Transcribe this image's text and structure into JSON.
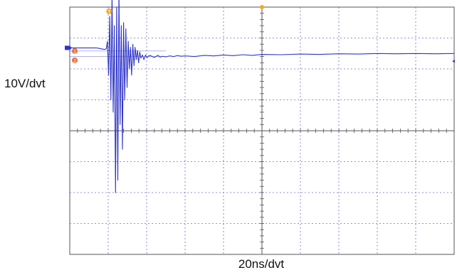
{
  "chart_data": {
    "type": "line",
    "title": "",
    "xlabel": "20ns/dvt",
    "ylabel": "10V/dvt",
    "x_divisions": 10,
    "y_divisions": 8,
    "xlim": [
      0,
      200
    ],
    "ylim": [
      -40,
      40
    ],
    "x_unit": "ns",
    "y_unit": "V",
    "grid": true,
    "series": [
      {
        "color": "#2f35c8",
        "x": [
          0,
          14,
          18,
          19.0,
          19.6,
          20.2,
          20.8,
          21.4,
          22.0,
          22.6,
          23.2,
          23.8,
          24.4,
          25.0,
          25.6,
          26.2,
          26.8,
          27.4,
          28.0,
          28.6,
          29.2,
          29.8,
          30.4,
          31.0,
          31.6,
          32.2,
          32.8,
          33.4,
          34.0,
          34.6,
          35.2,
          35.8,
          36.4,
          37.0,
          37.8,
          38.6,
          39.4,
          40.2,
          41.0,
          42,
          43,
          44,
          45,
          46,
          47,
          48,
          50,
          52,
          54,
          56,
          58,
          60,
          65,
          70,
          75,
          80,
          85,
          90,
          95,
          100,
          110,
          120,
          130,
          140,
          150,
          160,
          170,
          180,
          190,
          200
        ],
        "y": [
          26.8,
          26.8,
          26.3,
          26.5,
          29,
          18,
          37,
          10,
          44,
          6,
          34,
          -20,
          40,
          -16,
          46,
          2,
          34,
          -6,
          35,
          10,
          33,
          14,
          29,
          20,
          27,
          18,
          28,
          21,
          27,
          23,
          26,
          22,
          25.5,
          23.5,
          24.5,
          23,
          24.5,
          23.6,
          24.2,
          24.3,
          24.0,
          23.7,
          24.1,
          24.4,
          23.8,
          24.1,
          23.9,
          24.2,
          24.0,
          24.3,
          24.1,
          24.2,
          24.0,
          24.4,
          24.2,
          24.5,
          24.3,
          24.6,
          24.4,
          24.7,
          24.6,
          24.8,
          24.7,
          24.9,
          24.8,
          25.0,
          24.9,
          25.0,
          24.9,
          25.0
        ]
      }
    ]
  },
  "labels": {
    "ylabel": "10V/dvt",
    "xlabel": "20ns/dvt",
    "trigger_marker": "T",
    "channel_marker_1": "1",
    "channel_marker_2": "2"
  },
  "colors": {
    "grid": "#6b6bd6",
    "frame": "#555555",
    "trace": "#2f35c8",
    "trigger": "#f5a623",
    "marker": "#e8743b"
  }
}
